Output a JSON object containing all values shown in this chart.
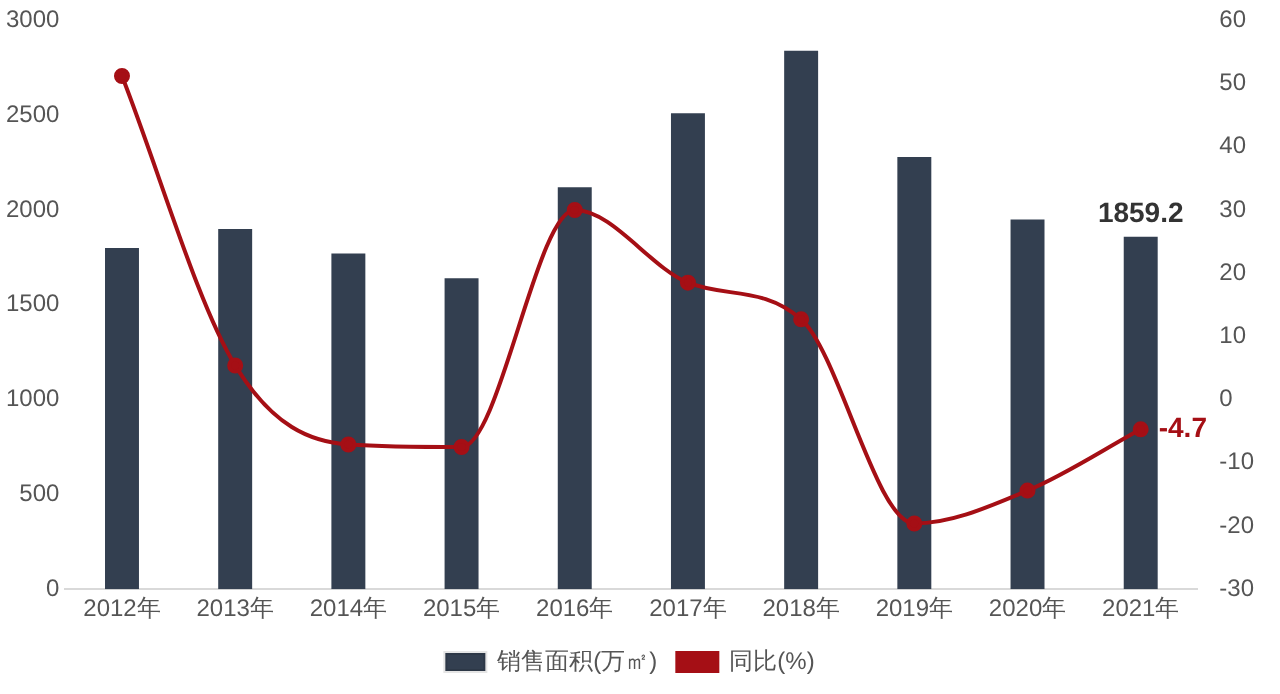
{
  "chart_data": {
    "type": "bar",
    "categories": [
      "2012年",
      "2013年",
      "2014年",
      "2015年",
      "2016年",
      "2017年",
      "2018年",
      "2019年",
      "2020年",
      "2021年"
    ],
    "series": [
      {
        "name": "销售面积(万㎡)",
        "color": "#333f50",
        "values": [
          1800,
          1900,
          1770,
          1640,
          2120,
          2510,
          2840,
          2280,
          1950,
          1859.2
        ],
        "value_labels": [
          null,
          null,
          null,
          null,
          null,
          null,
          null,
          null,
          null,
          "1859.2"
        ]
      },
      {
        "name": "同比(%)",
        "type": "line",
        "axis": "y2",
        "color": "#a50f15",
        "values": [
          51.2,
          5.4,
          -7.1,
          -7.5,
          30,
          18.5,
          12.7,
          -19.6,
          -14.4,
          -4.7
        ],
        "value_labels": [
          null,
          null,
          null,
          null,
          null,
          null,
          null,
          null,
          null,
          "-4.7"
        ]
      }
    ],
    "ylim": [
      0,
      3000
    ],
    "yticks": [
      0,
      500,
      1000,
      1500,
      2000,
      2500,
      3000
    ],
    "y2lim": [
      -30,
      60
    ],
    "y2ticks": [
      -30,
      -20,
      -10,
      0,
      10,
      20,
      30,
      40,
      50,
      60
    ],
    "grid": false,
    "legend": "bottom",
    "marker": "circle"
  }
}
